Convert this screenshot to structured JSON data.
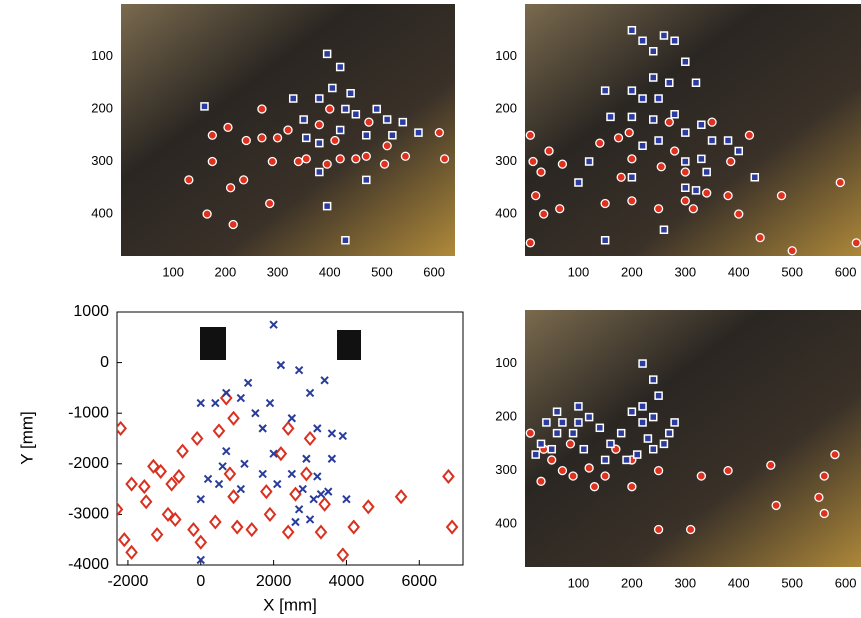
{
  "chart_data": [
    {
      "type": "scatter",
      "photo": true,
      "y_inverted": true,
      "xlim": [
        0,
        640
      ],
      "ylim": [
        0,
        480
      ],
      "xticks": [
        100,
        200,
        300,
        400,
        500,
        600
      ],
      "yticks": [
        100,
        200,
        300,
        400
      ],
      "series": [
        {
          "color": "#e0301e",
          "marker": "circle",
          "x": [
            165,
            215,
            235,
            285,
            355,
            210,
            130,
            175,
            240,
            205,
            270,
            290,
            320,
            340,
            400,
            380,
            410,
            450,
            470,
            505,
            510,
            545,
            610,
            620,
            420,
            475,
            175,
            270,
            300,
            395
          ],
          "values": [
            400,
            420,
            335,
            380,
            295,
            350,
            335,
            300,
            260,
            235,
            255,
            300,
            240,
            300,
            200,
            230,
            260,
            295,
            290,
            305,
            270,
            290,
            245,
            295,
            295,
            225,
            250,
            200,
            255,
            305
          ]
        },
        {
          "color": "#2b3b9e",
          "marker": "square",
          "x": [
            430,
            470,
            395,
            380,
            395,
            420,
            405,
            380,
            330,
            430,
            450,
            490,
            510,
            540,
            570,
            355,
            380,
            470,
            520,
            160,
            420,
            350,
            440
          ],
          "values": [
            450,
            335,
            385,
            320,
            95,
            120,
            160,
            180,
            180,
            200,
            210,
            200,
            220,
            225,
            245,
            255,
            265,
            250,
            250,
            195,
            240,
            220,
            170
          ]
        }
      ]
    },
    {
      "type": "scatter",
      "photo": true,
      "y_inverted": true,
      "xlim": [
        0,
        640
      ],
      "ylim": [
        0,
        480
      ],
      "xticks": [
        100,
        200,
        300,
        400,
        500,
        600
      ],
      "yticks": [
        100,
        200,
        300,
        400
      ],
      "series": [
        {
          "color": "#e0301e",
          "marker": "circle",
          "x": [
            10,
            15,
            30,
            45,
            70,
            20,
            35,
            65,
            10,
            150,
            200,
            140,
            175,
            195,
            200,
            270,
            255,
            280,
            300,
            300,
            315,
            340,
            380,
            420,
            350,
            385,
            400,
            440,
            480,
            500,
            590,
            620,
            180,
            250
          ],
          "values": [
            250,
            300,
            320,
            280,
            305,
            365,
            400,
            390,
            455,
            380,
            375,
            265,
            255,
            245,
            295,
            225,
            310,
            280,
            320,
            375,
            390,
            360,
            365,
            250,
            225,
            300,
            400,
            445,
            365,
            470,
            340,
            455,
            330,
            390
          ]
        },
        {
          "color": "#2b3b9e",
          "marker": "square",
          "x": [
            200,
            220,
            240,
            260,
            280,
            270,
            300,
            320,
            240,
            150,
            160,
            200,
            220,
            240,
            250,
            280,
            300,
            330,
            350,
            380,
            400,
            430,
            300,
            340,
            300,
            320,
            100,
            200,
            120,
            220,
            250,
            260,
            150,
            330,
            200
          ],
          "values": [
            50,
            70,
            90,
            60,
            70,
            150,
            110,
            150,
            140,
            165,
            215,
            215,
            180,
            220,
            260,
            210,
            245,
            230,
            260,
            260,
            280,
            330,
            300,
            320,
            350,
            355,
            340,
            330,
            300,
            270,
            180,
            430,
            450,
            295,
            165
          ]
        }
      ]
    },
    {
      "type": "scatter",
      "photo": false,
      "xlim": [
        -2300,
        7200
      ],
      "ylim": [
        -4000,
        1000
      ],
      "xticks": [
        -2000,
        0,
        2000,
        4000,
        6000
      ],
      "yticks": [
        -4000,
        -3000,
        -2000,
        -1000,
        0,
        1000
      ],
      "xlabel": "X [mm]",
      "ylabel": "Y [mm]",
      "series": [
        {
          "color": "#d9301f",
          "marker": "diamond",
          "x": [
            -2200,
            -1900,
            -2300,
            -1550,
            -1300,
            -1100,
            -1500,
            -2100,
            -1900,
            -1200,
            -900,
            -700,
            -800,
            -600,
            -500,
            -200,
            0,
            -100,
            500,
            900,
            700,
            800,
            900,
            400,
            1000,
            1400,
            1800,
            1900,
            2200,
            2400,
            2600,
            2400,
            2900,
            3000,
            3400,
            3300,
            3900,
            4200,
            4600,
            5500,
            6800,
            6900
          ],
          "values": [
            -1300,
            -2400,
            -2900,
            -2450,
            -2050,
            -2150,
            -2750,
            -3500,
            -3750,
            -3400,
            -3000,
            -3100,
            -2400,
            -2250,
            -1750,
            -3300,
            -3550,
            -1500,
            -1350,
            -1100,
            -700,
            -2200,
            -2650,
            -3150,
            -3250,
            -3300,
            -2550,
            -3000,
            -1800,
            -1300,
            -2600,
            -3350,
            -2200,
            -1500,
            -2800,
            -3350,
            -3800,
            -3250,
            -2850,
            -2650,
            -2250,
            -3250
          ]
        },
        {
          "color": "#283c9c",
          "marker": "x",
          "x": [
            2000,
            700,
            400,
            1100,
            1300,
            1900,
            2200,
            2700,
            3000,
            3400,
            0,
            1500,
            1700,
            2000,
            2500,
            3200,
            3600,
            3900,
            700,
            600,
            1200,
            1100,
            200,
            500,
            1700,
            2100,
            2500,
            3200,
            2800,
            3100,
            3300,
            2700,
            3500,
            4000,
            3000,
            2600,
            0,
            0,
            3600,
            2900
          ],
          "values": [
            750,
            -600,
            -800,
            -700,
            -400,
            -800,
            -50,
            -150,
            -600,
            -350,
            -800,
            -1000,
            -1300,
            -1800,
            -1100,
            -1300,
            -1400,
            -1450,
            -1750,
            -2050,
            -2000,
            -2500,
            -2300,
            -2400,
            -2200,
            -2400,
            -2200,
            -2250,
            -2500,
            -2700,
            -2600,
            -2900,
            -2550,
            -2700,
            -3100,
            -3150,
            -2700,
            -3900,
            -1900,
            -1900
          ]
        }
      ]
    },
    {
      "type": "scatter",
      "photo": true,
      "y_inverted": true,
      "xlim": [
        0,
        640
      ],
      "ylim": [
        0,
        480
      ],
      "xticks": [
        100,
        200,
        300,
        400,
        500,
        600
      ],
      "yticks": [
        100,
        200,
        300,
        400
      ],
      "series": [
        {
          "color": "#e0301e",
          "marker": "circle",
          "x": [
            10,
            35,
            50,
            90,
            70,
            120,
            150,
            130,
            200,
            250,
            310,
            330,
            380,
            460,
            470,
            560,
            580,
            550,
            560,
            250,
            200,
            170,
            30,
            85
          ],
          "values": [
            230,
            260,
            280,
            310,
            300,
            295,
            310,
            330,
            330,
            410,
            410,
            310,
            300,
            290,
            365,
            310,
            270,
            350,
            380,
            300,
            280,
            260,
            320,
            250
          ]
        },
        {
          "color": "#2b3b9e",
          "marker": "square",
          "x": [
            220,
            240,
            250,
            220,
            200,
            220,
            240,
            270,
            260,
            230,
            240,
            210,
            180,
            160,
            140,
            120,
            100,
            90,
            70,
            60,
            40,
            30,
            20,
            50,
            110,
            150,
            190,
            280,
            100,
            60
          ],
          "values": [
            100,
            130,
            160,
            180,
            190,
            210,
            200,
            230,
            250,
            240,
            260,
            270,
            230,
            250,
            220,
            200,
            210,
            230,
            210,
            230,
            210,
            250,
            270,
            260,
            260,
            280,
            280,
            210,
            180,
            190
          ]
        }
      ]
    }
  ]
}
